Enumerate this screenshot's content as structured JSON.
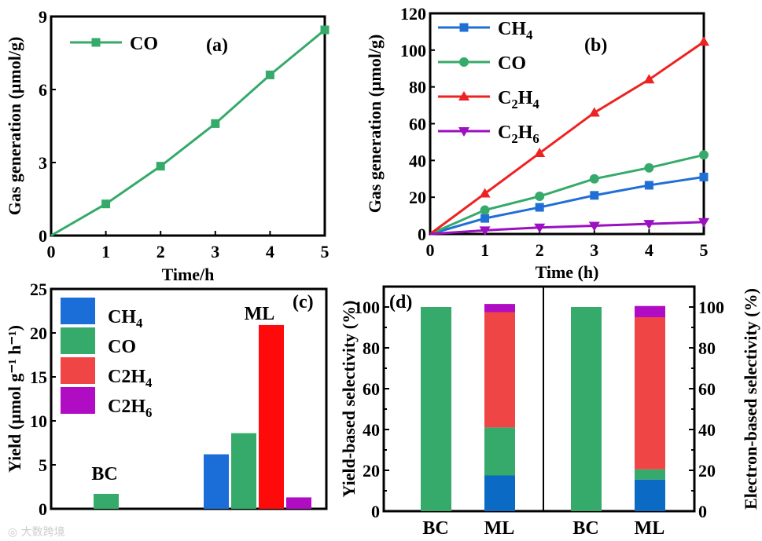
{
  "watermark": "大数跨境",
  "colors": {
    "CH4": "#1f6fd6",
    "CO": "#35aa6a",
    "C2H4": "#ee2222",
    "C2H6": "#9b10c0",
    "CH4_bar": "#1b6ed8",
    "C2H4_bar": "#f04545",
    "C2H6_bar": "#b00cc4",
    "CH4_stack": "#0b6bc4"
  },
  "chart_data": [
    {
      "panel": "(a)",
      "type": "line",
      "xlabel": "Time/h",
      "ylabel": "Gas generation (μmol/g)",
      "xlim": [
        0,
        5
      ],
      "ylim": [
        0,
        9
      ],
      "xticks": [
        "0",
        "1",
        "2",
        "3",
        "4",
        "5"
      ],
      "yticks": [
        "0",
        "3",
        "6",
        "9"
      ],
      "legend": "top-left",
      "x": [
        0,
        1,
        2,
        3,
        4,
        5
      ],
      "series": [
        {
          "name": "CO",
          "key": "CO",
          "marker": "square",
          "values": [
            0,
            1.3,
            2.85,
            4.6,
            6.6,
            8.45
          ]
        }
      ]
    },
    {
      "panel": "(b)",
      "type": "line",
      "xlabel": "Time (h)",
      "ylabel": "Gas generation (μmol/g)",
      "xlim": [
        0,
        5
      ],
      "ylim": [
        0,
        120
      ],
      "xticks": [
        "0",
        "1",
        "2",
        "3",
        "4",
        "5"
      ],
      "yticks": [
        "0",
        "20",
        "40",
        "60",
        "80",
        "100",
        "120"
      ],
      "legend": "top-left",
      "x": [
        0,
        1,
        2,
        3,
        4,
        5
      ],
      "series": [
        {
          "name": "CH",
          "sub": "4",
          "key": "CH4",
          "marker": "square",
          "values": [
            0,
            8.5,
            14.5,
            21,
            26.5,
            31
          ]
        },
        {
          "name": "CO",
          "sub": "",
          "key": "CO",
          "marker": "circle",
          "values": [
            0,
            13,
            20.5,
            30,
            36,
            43
          ]
        },
        {
          "name": "C2H",
          "sub": "4",
          "key": "C2H4",
          "marker": "triangle-up",
          "values": [
            0,
            22,
            44,
            66,
            84,
            104.5
          ]
        },
        {
          "name": "C2H",
          "sub": "6",
          "key": "C2H6",
          "marker": "triangle-down",
          "values": [
            0,
            2,
            3.5,
            4.5,
            5.5,
            6.5
          ]
        }
      ]
    },
    {
      "panel": "(c)",
      "type": "bar",
      "ylabel": "Yield (μmol g⁻¹ h⁻¹)",
      "ylim": [
        0,
        25
      ],
      "yticks": [
        "0",
        "5",
        "10",
        "15",
        "20",
        "25"
      ],
      "legend": "top-left",
      "categories": [
        "BC",
        "ML"
      ],
      "series": [
        {
          "name": "CH4",
          "label": "CH",
          "sub": "4",
          "values": [
            0,
            6.2
          ]
        },
        {
          "name": "CO",
          "label": "CO",
          "sub": "",
          "values": [
            1.7,
            8.6
          ]
        },
        {
          "name": "C2H4",
          "label": "C2H",
          "sub": "4",
          "values": [
            0,
            20.9
          ]
        },
        {
          "name": "C2H6",
          "label": "C2H",
          "sub": "6",
          "values": [
            0,
            1.3
          ]
        }
      ]
    },
    {
      "panel": "(d)",
      "type": "stacked-bar",
      "ylabel_left": "Yield-based selectivity (%)",
      "ylabel_right": "Electron-based selectivity (%)",
      "ylim": [
        0,
        110
      ],
      "yticks": [
        "0",
        "20",
        "40",
        "60",
        "80",
        "100"
      ],
      "groups": [
        {
          "name": "yield",
          "categories": [
            "BC",
            "ML"
          ],
          "stacks": {
            "CH4": [
              0,
              17.5
            ],
            "CO": [
              100,
              23.5
            ],
            "C2H4": [
              0,
              56.5
            ],
            "C2H6": [
              0,
              4
            ]
          }
        },
        {
          "name": "electron",
          "categories": [
            "BC",
            "ML"
          ],
          "stacks": {
            "CH4": [
              0,
              15.5
            ],
            "CO": [
              100,
              5
            ],
            "C2H4": [
              0,
              74.5
            ],
            "C2H6": [
              0,
              5.5
            ]
          }
        }
      ]
    }
  ]
}
